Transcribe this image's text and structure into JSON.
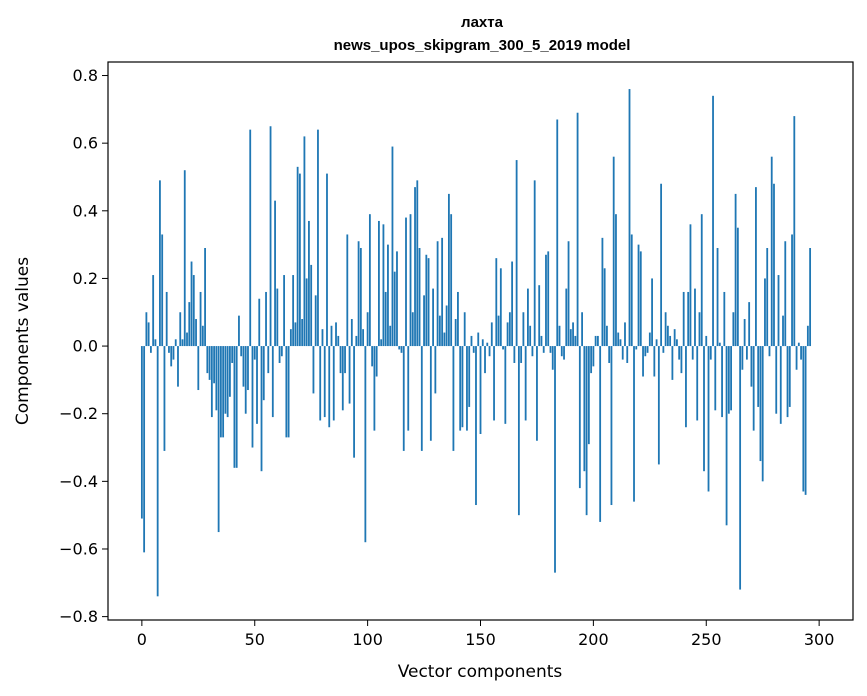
{
  "chart_data": {
    "type": "bar",
    "title": "лахта",
    "subtitle": "news_upos_skipgram_300_5_2019 model",
    "xlabel": "Vector components",
    "ylabel": "Components values",
    "xlim": [
      -15,
      315
    ],
    "ylim": [
      -0.81,
      0.84
    ],
    "xticks": [
      0,
      50,
      100,
      150,
      200,
      250,
      300
    ],
    "xtick_labels": [
      "0",
      "50",
      "100",
      "150",
      "200",
      "250",
      "300"
    ],
    "yticks": [
      -0.8,
      -0.6,
      -0.4,
      -0.2,
      0.0,
      0.2,
      0.4,
      0.6,
      0.8
    ],
    "ytick_labels": [
      "−0.8",
      "−0.6",
      "−0.4",
      "−0.2",
      "0.0",
      "0.2",
      "0.4",
      "0.6",
      "0.8"
    ],
    "bar_color": "#1f77b4",
    "grid": false,
    "values": [
      -0.51,
      -0.61,
      0.1,
      0.07,
      -0.02,
      0.21,
      0.02,
      -0.74,
      0.49,
      0.33,
      -0.31,
      0.16,
      -0.02,
      -0.06,
      -0.04,
      0.02,
      -0.12,
      0.1,
      0.02,
      0.52,
      0.04,
      0.13,
      0.25,
      0.21,
      0.08,
      -0.13,
      0.16,
      0.06,
      0.29,
      -0.08,
      -0.1,
      -0.21,
      -0.11,
      -0.19,
      -0.55,
      -0.27,
      -0.27,
      -0.2,
      -0.21,
      -0.15,
      -0.05,
      -0.36,
      -0.36,
      0.09,
      -0.03,
      -0.12,
      -0.2,
      -0.13,
      0.64,
      -0.3,
      -0.04,
      -0.23,
      0.14,
      -0.37,
      -0.16,
      0.16,
      -0.08,
      0.65,
      -0.21,
      0.43,
      0.17,
      -0.05,
      -0.03,
      0.21,
      -0.27,
      -0.27,
      0.05,
      0.21,
      0.07,
      0.53,
      0.51,
      0.08,
      0.62,
      0.2,
      0.37,
      0.24,
      -0.14,
      0.15,
      0.64,
      -0.22,
      0.05,
      -0.21,
      0.51,
      -0.24,
      0.06,
      -0.22,
      0.07,
      0.03,
      -0.08,
      -0.19,
      -0.08,
      0.33,
      -0.17,
      0.08,
      -0.33,
      0.03,
      0.31,
      0.29,
      0.05,
      -0.58,
      0.1,
      0.39,
      -0.06,
      -0.25,
      -0.09,
      0.37,
      0.02,
      0.36,
      0.16,
      0.3,
      0.06,
      0.59,
      0.22,
      0.28,
      -0.01,
      -0.02,
      -0.31,
      0.38,
      -0.25,
      0.39,
      0.1,
      0.47,
      0.49,
      0.29,
      -0.31,
      0.15,
      0.27,
      0.26,
      -0.28,
      0.17,
      -0.14,
      0.31,
      0.09,
      0.32,
      0.04,
      0.12,
      0.45,
      0.39,
      -0.31,
      0.08,
      0.16,
      -0.25,
      -0.24,
      0.1,
      -0.25,
      -0.18,
      0.03,
      -0.02,
      -0.47,
      0.04,
      -0.26,
      0.02,
      -0.08,
      0.01,
      -0.03,
      0.07,
      -0.22,
      0.26,
      0.09,
      0.23,
      -0.01,
      -0.23,
      0.07,
      0.1,
      0.25,
      -0.05,
      0.55,
      -0.5,
      -0.05,
      0.1,
      -0.22,
      0.17,
      0.06,
      -0.03,
      0.49,
      -0.28,
      0.18,
      0.03,
      -0.02,
      0.27,
      0.28,
      -0.02,
      -0.07,
      -0.67,
      0.67,
      0.06,
      -0.03,
      -0.04,
      0.17,
      0.31,
      0.05,
      0.07,
      0.03,
      0.69,
      -0.42,
      0.1,
      -0.37,
      -0.5,
      -0.29,
      -0.08,
      -0.06,
      0.03,
      0.03,
      -0.52,
      0.32,
      0.23,
      0.06,
      -0.05,
      -0.47,
      0.56,
      0.39,
      0.04,
      0.02,
      -0.04,
      0.07,
      -0.05,
      0.76,
      0.33,
      -0.46,
      -0.01,
      0.3,
      0.28,
      -0.09,
      -0.03,
      -0.02,
      0.04,
      0.2,
      -0.09,
      0.02,
      -0.35,
      0.48,
      -0.02,
      0.1,
      0.06,
      0.03,
      -0.1,
      0.05,
      0.02,
      -0.04,
      -0.08,
      0.16,
      -0.24,
      0.16,
      0.36,
      -0.04,
      0.17,
      -0.22,
      0.1,
      0.39,
      -0.37,
      0.03,
      -0.43,
      -0.04,
      0.74,
      -0.19,
      0.29,
      0.01,
      -0.21,
      0.16,
      -0.53,
      -0.2,
      -0.19,
      0.1,
      0.45,
      0.35,
      -0.72,
      -0.07,
      0.08,
      -0.04,
      0.13,
      -0.12,
      -0.25,
      0.47,
      -0.18,
      -0.34,
      -0.4,
      0.2,
      0.29,
      -0.03,
      0.56,
      0.48,
      -0.2,
      0.21,
      -0.23,
      0.09,
      0.31,
      -0.21,
      -0.18,
      0.33,
      0.68,
      -0.07,
      0.01,
      -0.04,
      -0.43,
      -0.44,
      0.06,
      0.29
    ]
  }
}
